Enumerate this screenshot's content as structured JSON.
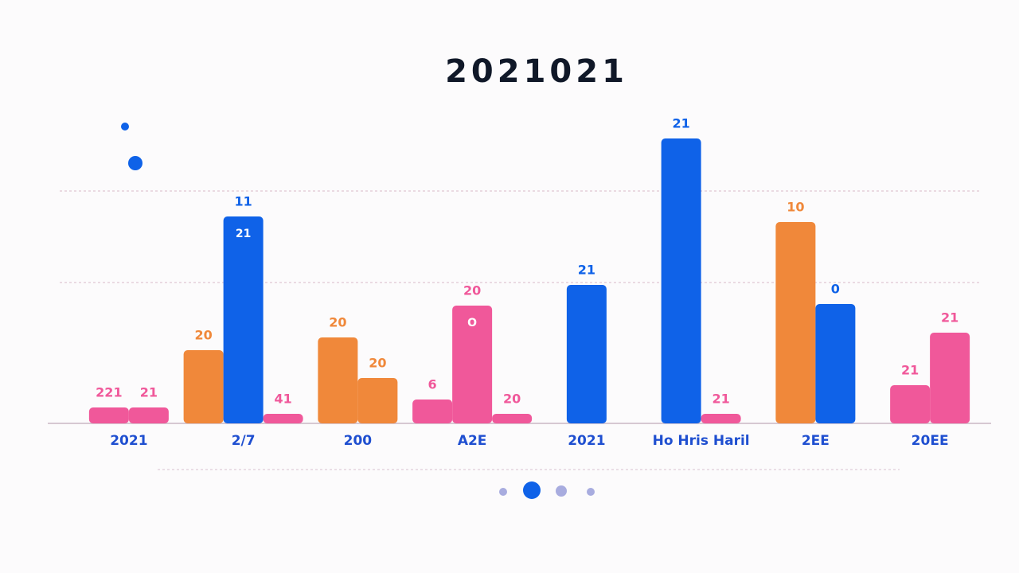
{
  "chart_data": {
    "type": "bar",
    "title": "2021021",
    "categories": [
      "2021",
      "2/7",
      "200",
      "A2E",
      "2021",
      "Ho Hris Haril",
      "2EE",
      "20EE"
    ],
    "series": [
      {
        "colors": [
          "#f0589a",
          "#f0883a",
          "#f0883a",
          "#f0589a",
          "#0f62e8",
          null,
          "#f0883a",
          "#f0589a"
        ],
        "values": [
          20,
          92,
          108,
          30,
          174,
          null,
          253,
          48
        ],
        "bar_labels": [
          "221",
          "20",
          "20",
          "6",
          "21",
          null,
          "10",
          "21"
        ]
      },
      {
        "colors": [
          "#f0589a",
          "#0f62e8",
          "#f0883a",
          "#f0589a",
          null,
          "#0f62e8",
          "#0f62e8",
          "#f0589a"
        ],
        "values": [
          20,
          260,
          57,
          148,
          null,
          358,
          150,
          114
        ],
        "bar_labels": [
          "21",
          "11",
          "20",
          "20",
          null,
          "21",
          "0",
          "21"
        ],
        "inner_labels": [
          null,
          "21",
          null,
          "O",
          null,
          null,
          null,
          null
        ]
      },
      {
        "colors": [
          null,
          "#f0589a",
          null,
          "#f0589a",
          null,
          "#f0589a",
          null,
          null
        ],
        "values": [
          null,
          12,
          null,
          12,
          null,
          12,
          null,
          null
        ],
        "bar_labels": [
          null,
          "41",
          null,
          "20",
          null,
          "21",
          null,
          null
        ]
      }
    ],
    "ylim": [
      0,
      400
    ],
    "gridlines": [
      177,
      292
    ],
    "grid": true
  }
}
